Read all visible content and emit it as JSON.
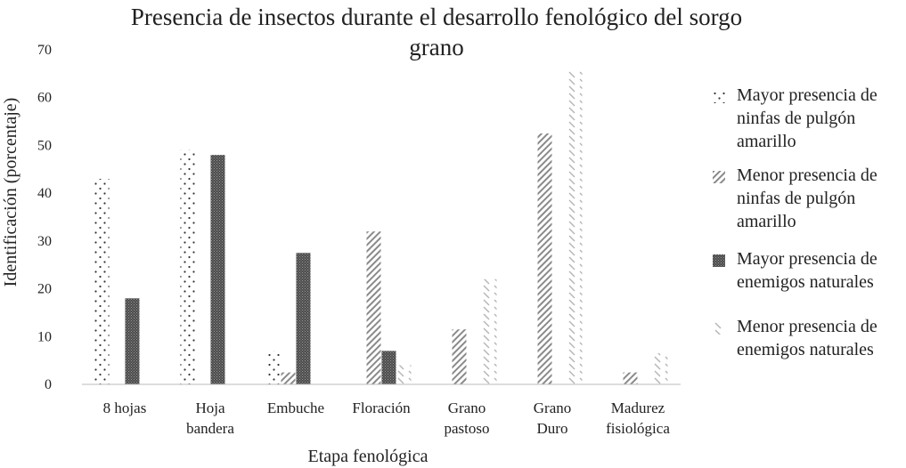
{
  "chart_data": {
    "type": "bar",
    "title": "Presencia de insectos durante el desarrollo fenológico del  sorgo grano",
    "title_lines": [
      "Presencia de insectos durante el desarrollo fenológico del  sorgo",
      "grano"
    ],
    "xlabel": "Etapa fenológica",
    "ylabel": "Identificación (porcentaje)",
    "ylim": [
      0,
      70
    ],
    "yticks": [
      0,
      10,
      20,
      30,
      40,
      50,
      60,
      70
    ],
    "categories": [
      [
        "8 hojas"
      ],
      [
        "Hoja",
        "bandera"
      ],
      [
        "Embuche"
      ],
      [
        "Floración"
      ],
      [
        "Grano",
        "pastoso"
      ],
      [
        "Grano",
        "Duro"
      ],
      [
        "Madurez",
        "fisiológica"
      ]
    ],
    "series": [
      {
        "name_lines": [
          "Mayor presencia de",
          "ninfas de pulgón",
          "amarillo"
        ],
        "pattern": "dots",
        "values": [
          43,
          49,
          7,
          0,
          0,
          0,
          0
        ]
      },
      {
        "name_lines": [
          "Menor presencia de",
          "ninfas de pulgón",
          "amarillo"
        ],
        "pattern": "diag",
        "values": [
          0,
          0,
          2.5,
          32,
          11.5,
          52.5,
          2.5
        ]
      },
      {
        "name_lines": [
          "Mayor presencia de",
          "enemigos naturales"
        ],
        "pattern": "dense",
        "values": [
          18,
          48,
          27.5,
          7,
          0,
          0,
          0
        ]
      },
      {
        "name_lines": [
          "Menor presencia de",
          "enemigos naturales"
        ],
        "pattern": "light",
        "values": [
          0,
          0,
          0,
          4,
          22,
          65.5,
          6.5
        ]
      }
    ],
    "grid": false,
    "legend": "right"
  }
}
